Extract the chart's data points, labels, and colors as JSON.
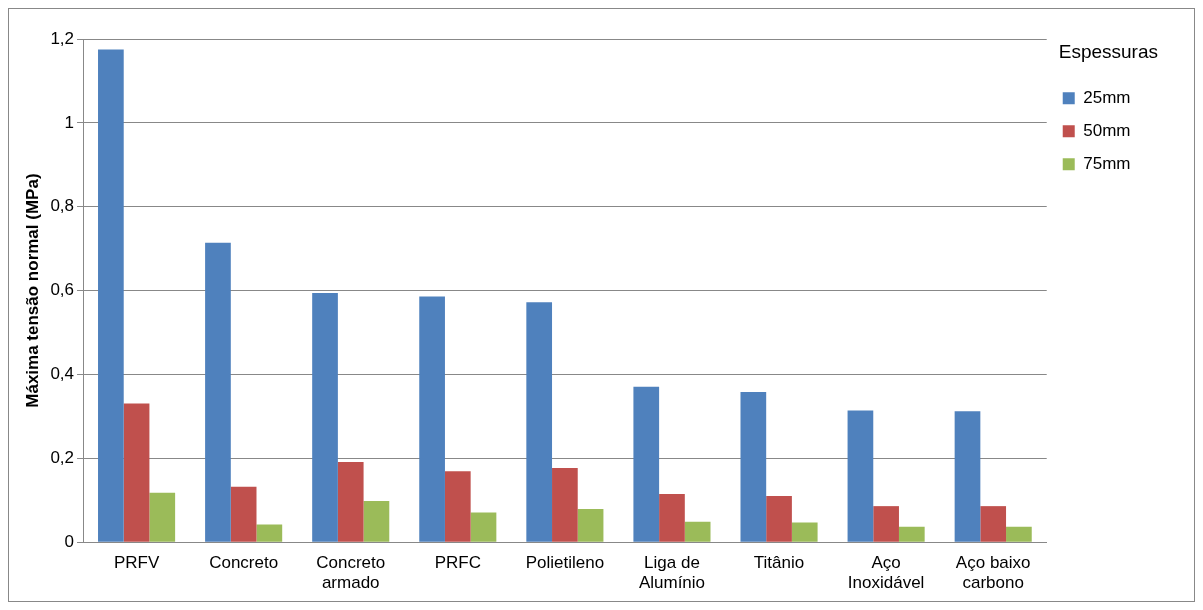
{
  "chart_data": {
    "type": "bar",
    "ylabel": "Máxima tensão normal (MPa)",
    "legend_title": "Espessuras",
    "categories": [
      "PRFV",
      "Concreto",
      "Concreto armado",
      "PRFC",
      "Polietileno",
      "Liga de Alumínio",
      "Titânio",
      "Aço Inoxidável",
      "Aço baixo carbono"
    ],
    "series": [
      {
        "name": "25mm",
        "color": "#4f81bd",
        "values": [
          1.175,
          0.714,
          0.594,
          0.586,
          0.572,
          0.371,
          0.358,
          0.314,
          0.312
        ]
      },
      {
        "name": "50mm",
        "color": "#c0504d",
        "values": [
          0.331,
          0.132,
          0.191,
          0.169,
          0.177,
          0.115,
          0.11,
          0.086,
          0.086
        ]
      },
      {
        "name": "75mm",
        "color": "#9bbb59",
        "values": [
          0.118,
          0.042,
          0.098,
          0.071,
          0.079,
          0.049,
          0.047,
          0.037,
          0.037
        ]
      }
    ],
    "ylim": [
      0,
      1.2
    ],
    "yticks": [
      0,
      {
        "value": 0.2,
        "label": "0,2"
      },
      {
        "value": 0.4,
        "label": "0,4"
      },
      {
        "value": 0.6,
        "label": "0,6"
      },
      {
        "value": 0.8,
        "label": "0,8"
      },
      1,
      {
        "value": 1.2,
        "label": "1,2"
      }
    ],
    "grid": "y",
    "legend": "right"
  }
}
